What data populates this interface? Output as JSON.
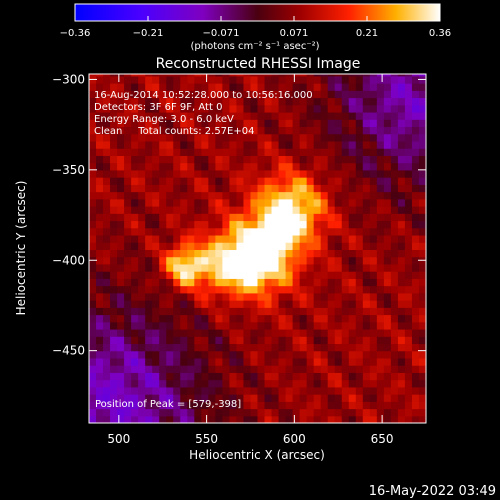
{
  "chart_data": {
    "type": "heatmap",
    "title": "Reconstructed RHESSI Image",
    "xlabel": "Heliocentric X (arcsec)",
    "ylabel": "Heliocentric Y (arcsec)",
    "xlim": [
      483,
      675
    ],
    "ylim": [
      -490,
      -297
    ],
    "x_ticks": [
      500,
      550,
      600,
      650
    ],
    "y_ticks": [
      -300,
      -350,
      -400,
      -450
    ],
    "colorbar": {
      "label": "(photons cm⁻² s⁻¹ asec⁻²)",
      "range": [
        -0.36,
        0.36
      ],
      "ticks": [
        "-0.36",
        "-0.21",
        "-0.071",
        "0.071",
        "0.21",
        "0.36"
      ]
    },
    "annotations": [
      "16-Aug-2014 10:52:28.000 to 10:56:16.000",
      "Detectors: 3F 6F 9F, Att 0",
      "Energy Range: 3.0 - 6.0 keV",
      "Clean     Total counts: 2.57E+04"
    ],
    "peak_label": "Position of Peak = [579,-398]",
    "peak": [
      579,
      -398
    ],
    "sources": [
      {
        "x": 579,
        "y": -398,
        "amp": 0.36,
        "sigma": 14
      },
      {
        "x": 598,
        "y": -372,
        "amp": 0.28,
        "sigma": 14
      },
      {
        "x": 537,
        "y": -403,
        "amp": 0.24,
        "sigma": 8
      },
      {
        "x": 556,
        "y": -403,
        "amp": 0.16,
        "sigma": 12
      }
    ],
    "background_level": 0.08
  },
  "footer_timestamp": "16-May-2022 03:49"
}
